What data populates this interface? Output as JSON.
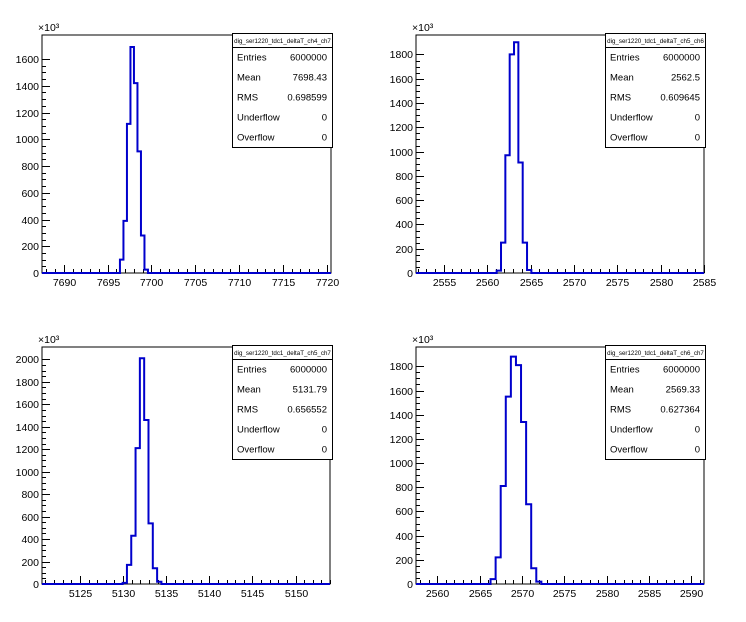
{
  "chart_data": [
    {
      "type": "bar",
      "title": "dig_ser1220_tdc1_deltaT_ch4_ch7",
      "y_multiplier": "×10³",
      "xlim": [
        7687.5,
        7720.5
      ],
      "ylim": [
        0,
        1780
      ],
      "xticks": [
        7690,
        7695,
        7700,
        7705,
        7710,
        7715,
        7720
      ],
      "yticks": [
        0,
        200,
        400,
        600,
        800,
        1000,
        1200,
        1400,
        1600
      ],
      "bins": {
        "lo": 7696.4,
        "width": 0.4
      },
      "values": [
        100,
        390,
        1115,
        1690,
        1420,
        910,
        280,
        25
      ],
      "stats": [
        {
          "label": "Entries",
          "value": "6000000"
        },
        {
          "label": "Mean",
          "value": "7698.43"
        },
        {
          "label": "RMS",
          "value": "0.698599"
        },
        {
          "label": "Underflow",
          "value": "0"
        },
        {
          "label": "Overflow",
          "value": "0"
        }
      ],
      "line_color": "#0000cc"
    },
    {
      "type": "bar",
      "title": "dig_ser1220_tdc1_deltaT_ch5_ch6",
      "y_multiplier": "×10³",
      "xlim": [
        2551.8,
        2585
      ],
      "ylim": [
        0,
        1960
      ],
      "xticks": [
        2555,
        2560,
        2565,
        2570,
        2575,
        2580,
        2585
      ],
      "yticks": [
        0,
        200,
        400,
        600,
        800,
        1000,
        1200,
        1400,
        1600,
        1800
      ],
      "bins": {
        "lo": 2561.1,
        "width": 0.5
      },
      "values": [
        20,
        250,
        970,
        1800,
        1900,
        910,
        250,
        25
      ],
      "stats": [
        {
          "label": "Entries",
          "value": "6000000"
        },
        {
          "label": "Mean",
          "value": "2562.5"
        },
        {
          "label": "RMS",
          "value": "0.609645"
        },
        {
          "label": "Underflow",
          "value": "0"
        },
        {
          "label": "Overflow",
          "value": "0"
        }
      ],
      "line_color": "#0000cc"
    },
    {
      "type": "bar",
      "title": "dig_ser1220_tdc1_deltaT_ch5_ch7",
      "y_multiplier": "×10³",
      "xlim": [
        5120.6,
        5154
      ],
      "ylim": [
        0,
        2110
      ],
      "xticks": [
        5125,
        5130,
        5135,
        5140,
        5145,
        5150
      ],
      "yticks": [
        0,
        200,
        400,
        600,
        800,
        1000,
        1200,
        1400,
        1600,
        1800,
        2000
      ],
      "bins": {
        "lo": 5129.95,
        "width": 0.5
      },
      "values": [
        10,
        170,
        430,
        1210,
        2010,
        1460,
        540,
        140,
        20
      ],
      "stats": [
        {
          "label": "Entries",
          "value": "6000000"
        },
        {
          "label": "Mean",
          "value": "5131.79"
        },
        {
          "label": "RMS",
          "value": "0.656552"
        },
        {
          "label": "Underflow",
          "value": "0"
        },
        {
          "label": "Overflow",
          "value": "0"
        }
      ],
      "line_color": "#0000cc"
    },
    {
      "type": "bar",
      "title": "dig_ser1220_tdc1_deltaT_ch6_ch7",
      "y_multiplier": "×10³",
      "xlim": [
        2557.5,
        2591.5
      ],
      "ylim": [
        0,
        1960
      ],
      "xticks": [
        2560,
        2565,
        2570,
        2575,
        2580,
        2585,
        2590
      ],
      "yticks": [
        0,
        200,
        400,
        600,
        800,
        1000,
        1200,
        1400,
        1600,
        1800
      ],
      "bins": {
        "lo": 2566.3,
        "width": 0.6
      },
      "values": [
        40,
        220,
        810,
        1550,
        1880,
        1810,
        1340,
        660,
        130,
        20
      ],
      "stats": [
        {
          "label": "Entries",
          "value": "6000000"
        },
        {
          "label": "Mean",
          "value": "2569.33"
        },
        {
          "label": "RMS",
          "value": "0.627364"
        },
        {
          "label": "Underflow",
          "value": "0"
        },
        {
          "label": "Overflow",
          "value": "0"
        }
      ],
      "line_color": "#0000cc"
    }
  ]
}
